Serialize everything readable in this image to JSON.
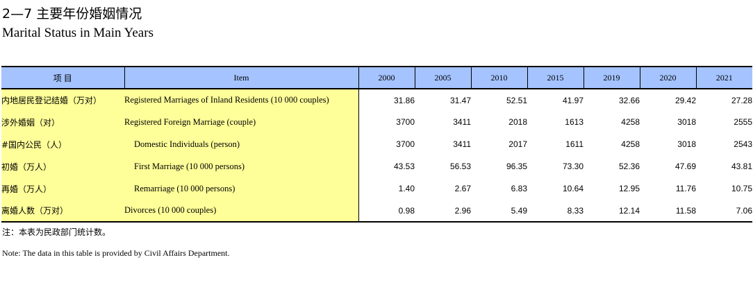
{
  "title_cn": "2—7  主要年份婚姻情况",
  "title_en": "Marital Status in Main Years",
  "header": {
    "item_cn": "项        目",
    "item_en": "Item",
    "years": [
      "2000",
      "2005",
      "2010",
      "2015",
      "2019",
      "2020",
      "2021"
    ]
  },
  "rows": [
    {
      "cn": "内地居民登记结婚（万对）",
      "en": "Registered Marriages of Inland Residents (10 000 couples)",
      "values": [
        "31.86",
        "31.47",
        "52.51",
        "41.97",
        "32.66",
        "29.42",
        "27.28"
      ]
    },
    {
      "cn": "涉外婚姻（对）",
      "en": "Registered Foreign Marriage (couple)",
      "values": [
        "3700",
        "3411",
        "2018",
        "1613",
        "4258",
        "3018",
        "2555"
      ]
    },
    {
      "cn": "#国内公民（人）",
      "en": "Domestic Individuals (person)",
      "values": [
        "3700",
        "3411",
        "2017",
        "1611",
        "4258",
        "3018",
        "2543"
      ]
    },
    {
      "cn": "初婚（万人）",
      "en": "First Marriage (10 000 persons)",
      "values": [
        "43.53",
        "56.53",
        "96.35",
        "73.30",
        "52.36",
        "47.69",
        "43.81"
      ]
    },
    {
      "cn": "再婚（万人）",
      "en": "Remarriage (10 000 persons)",
      "values": [
        "1.40",
        "2.67",
        "6.83",
        "10.64",
        "12.95",
        "11.76",
        "10.75"
      ]
    },
    {
      "cn": "离婚人数（万对）",
      "en": "Divorces (10 000 couples)",
      "values": [
        "0.98",
        "2.96",
        "5.49",
        "8.33",
        "12.14",
        "11.58",
        "7.06"
      ]
    }
  ],
  "note_cn": "注：本表为民政部门统计数。",
  "note_en": "Note: The data in this table is provided by Civil Affairs Department.",
  "colors": {
    "header_bg": "#a4c3ff",
    "stub_bg": "#ffff99"
  }
}
